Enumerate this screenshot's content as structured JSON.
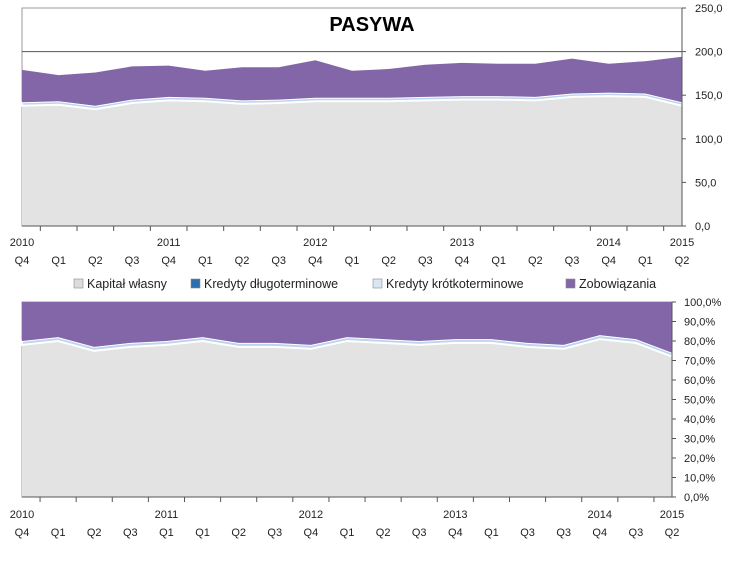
{
  "chart_data": [
    {
      "type": "area",
      "stacked": true,
      "title": "PASYWA",
      "ylim": [
        0,
        250
      ],
      "yticks": [
        "0,0",
        "50,0",
        "100,0",
        "150,0",
        "200,0",
        "250,0"
      ],
      "ref_line": 200,
      "categories": [
        "Q4 2010",
        "Q1",
        "Q2",
        "Q3",
        "Q4 2011",
        "Q1",
        "Q2",
        "Q3",
        "Q4 2012",
        "Q1",
        "Q2",
        "Q3",
        "Q4 2013",
        "Q1",
        "Q2",
        "Q3",
        "Q4 2014",
        "Q3",
        "Q2 2015"
      ],
      "series": [
        {
          "name": "Kapitał własny",
          "color": "#e3e3e3",
          "values": [
            138,
            139,
            134,
            141,
            144,
            143,
            140,
            141,
            143,
            143,
            143,
            144,
            145,
            145,
            144,
            148,
            149,
            148,
            138
          ]
        },
        {
          "name": "Kredyty długoterminowe",
          "color": "#2c6fae",
          "values": [
            0,
            0,
            0,
            0,
            0,
            0,
            0,
            0,
            0,
            0,
            0,
            0,
            0,
            0,
            0,
            0,
            0,
            0,
            0
          ]
        },
        {
          "name": "Kredyty krótkoterminowe",
          "color": "#bcd4ec",
          "values": [
            4,
            4,
            4,
            4,
            4,
            4,
            4,
            4,
            4,
            4,
            4,
            4,
            4,
            4,
            4,
            4,
            4,
            4,
            4
          ]
        },
        {
          "name": "Zobowiązania",
          "color": "#8266a8",
          "values": [
            37,
            30,
            38,
            38,
            36,
            31,
            38,
            37,
            43,
            31,
            33,
            37,
            38,
            37,
            38,
            40,
            33,
            37,
            52
          ]
        }
      ]
    },
    {
      "type": "area",
      "stacked": true,
      "percent": true,
      "ylim": [
        0,
        100
      ],
      "yticks": [
        "0,0%",
        "10,0%",
        "20,0%",
        "30,0%",
        "40,0%",
        "50,0%",
        "60,0%",
        "70,0%",
        "80,0%",
        "90,0%",
        "100,0%"
      ],
      "categories": [
        "Q4 2010",
        "Q1",
        "Q2",
        "Q3",
        "Q4 2011",
        "Q1",
        "Q2",
        "Q3",
        "Q4 2012",
        "Q1",
        "Q2",
        "Q3",
        "Q4 2013",
        "Q1",
        "Q2",
        "Q3",
        "Q4 2014",
        "Q3",
        "Q2 2015"
      ],
      "series": [
        {
          "name": "Kapitał własny",
          "color": "#e3e3e3",
          "values": [
            78,
            80,
            75,
            77,
            78,
            80,
            77,
            77,
            76,
            80,
            79,
            78,
            79,
            79,
            77,
            76,
            81,
            79,
            72
          ]
        },
        {
          "name": "Kredyty długoterminowe",
          "color": "#2c6fae",
          "values": [
            0,
            0,
            0,
            0,
            0,
            0,
            0,
            0,
            0,
            0,
            0,
            0,
            0,
            0,
            0,
            0,
            0,
            0,
            0
          ]
        },
        {
          "name": "Kredyty krótkoterminowe",
          "color": "#bcd4ec",
          "values": [
            2,
            2,
            2,
            2,
            2,
            2,
            2,
            2,
            2,
            2,
            2,
            2,
            2,
            2,
            2,
            2,
            2,
            2,
            2
          ]
        },
        {
          "name": "Zobowiązania",
          "color": "#8266a8",
          "values": [
            20,
            18,
            23,
            21,
            20,
            18,
            21,
            21,
            22,
            18,
            19,
            20,
            19,
            19,
            21,
            22,
            17,
            19,
            26
          ]
        }
      ]
    }
  ],
  "axis_labels": {
    "top": [
      "Q4",
      "Q1",
      "Q2",
      "Q3",
      "Q4",
      "Q1",
      "Q2",
      "Q3",
      "Q4",
      "Q1",
      "Q2",
      "Q3",
      "Q4",
      "Q1",
      "Q2",
      "Q3",
      "Q4",
      "Q1",
      "Q2"
    ],
    "bottom": [
      "Q4",
      "Q1",
      "Q2",
      "Q3",
      "Q1",
      "Q1",
      "Q2",
      "Q3",
      "Q4",
      "Q1",
      "Q2",
      "Q3",
      "Q4",
      "Q1",
      "Q3",
      "Q3",
      "Q4",
      "Q3",
      "Q2"
    ],
    "years": [
      "2010",
      "2011",
      "2012",
      "2013",
      "2014",
      "2015"
    ]
  },
  "legend": [
    {
      "label": "Kapitał własny",
      "color": "#dcdcdc"
    },
    {
      "label": "Kredyty długoterminowe",
      "color": "#2c6fae"
    },
    {
      "label": "Kredyty krótkoterminowe",
      "color": "#d9e6f3"
    },
    {
      "label": "Zobowiązania",
      "color": "#8266a8"
    }
  ]
}
